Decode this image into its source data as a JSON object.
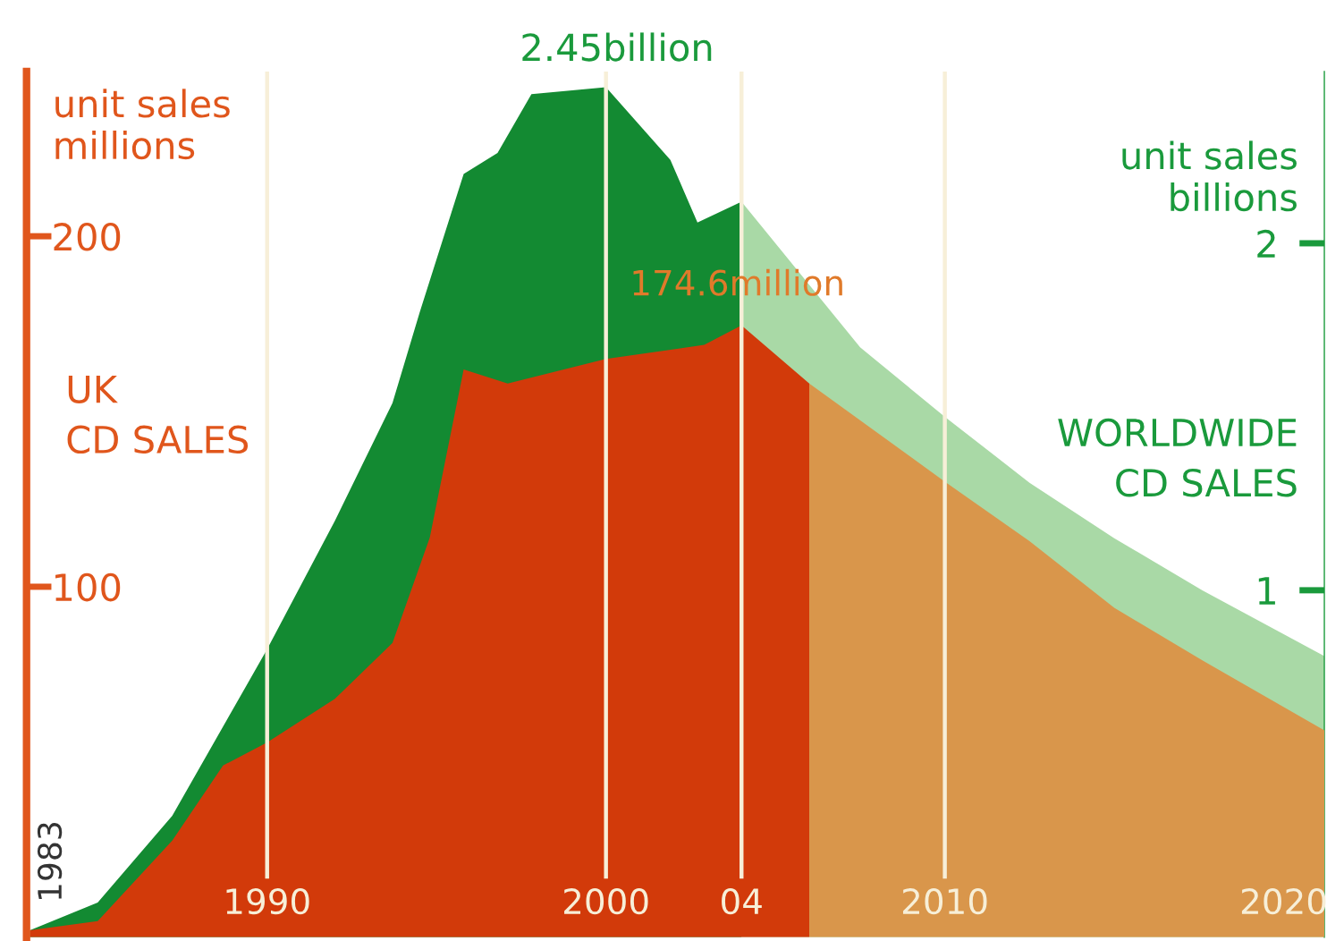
{
  "chart_data": {
    "type": "area",
    "ylabel": "unit sales\nmillions",
    "y2label": "unit sales\nbillions",
    "xlim": [
      1982.9,
      2021.2
    ],
    "xticks": [
      1990,
      2000,
      {
        "value": 2004,
        "label": "04"
      },
      2010,
      2020
    ],
    "ylim": [
      0,
      247
    ],
    "yticks": [
      100,
      200
    ],
    "y2lim": [
      0,
      2.495
    ],
    "y2ticks": [
      1,
      2
    ],
    "grid": false,
    "series": [
      {
        "color": "#138a32",
        "axis": "y2",
        "x": [
          1983,
          1985,
          1987.2,
          1990,
          1992,
          1993.7,
          1994.5,
          1995.8,
          1996.8,
          1997.8,
          2000,
          2001.9,
          2002.7,
          2004
        ],
        "values": [
          0.02,
          0.1,
          0.35,
          0.83,
          1.2,
          1.54,
          1.8,
          2.2,
          2.26,
          2.43,
          2.45,
          2.24,
          2.06,
          2.12
        ]
      },
      {
        "color": "#a9d9a6",
        "axis": "y2",
        "x": [
          2004,
          2007.5,
          2010,
          2012.5,
          2015,
          2017.6,
          2021.2
        ],
        "values": [
          2.12,
          1.7,
          1.5,
          1.31,
          1.15,
          1.0,
          0.81
        ]
      },
      {
        "color": "#d23a0a",
        "axis": "y",
        "x": [
          1983,
          1985,
          1987.2,
          1988.7,
          1990,
          1992,
          1993.7,
          1994.8,
          1995.8,
          1997.1,
          2000,
          2002.9,
          2004,
          2006
        ],
        "values": [
          2,
          4.6,
          27.6,
          49,
          55.6,
          68,
          84,
          114,
          162,
          158,
          165,
          169,
          174.6,
          158
        ]
      },
      {
        "color": "#d9964b",
        "axis": "y",
        "x": [
          2006,
          2010,
          2012.5,
          2015,
          2017.6,
          2021.2
        ],
        "values": [
          158,
          130,
          113,
          94,
          79,
          59
        ]
      }
    ],
    "ref_lines": [
      {
        "axis": "x",
        "value": 1990,
        "color": "#f7efd8"
      },
      {
        "axis": "x",
        "value": 2000,
        "color": "#f7efd8"
      },
      {
        "axis": "x",
        "value": 2004,
        "color": "#f7efd8"
      },
      {
        "axis": "x",
        "value": 2010,
        "color": "#f7efd8"
      }
    ],
    "annotations": [
      "2.45billion",
      "UK\nCD SALES",
      "WORLDWIDE\nCD SALES",
      "1983",
      {
        "text": "174.6million",
        "x": 2004,
        "y": 174.6
      }
    ]
  }
}
